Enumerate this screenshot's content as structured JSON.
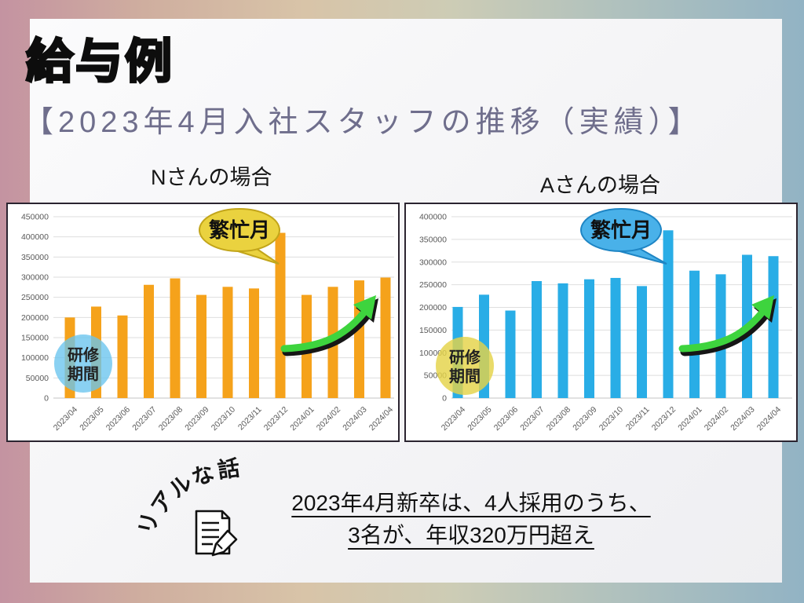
{
  "slide": {
    "title": "給与例",
    "subtitle": "【2023年4月入社スタッフの推移（実績）】"
  },
  "chart_data": [
    {
      "type": "bar",
      "title": "Nさんの場合",
      "categories": [
        "2023/04",
        "2023/05",
        "2023/06",
        "2023/07",
        "2023/08",
        "2023/09",
        "2023/10",
        "2023/11",
        "2023/12",
        "2024/01",
        "2024/02",
        "2024/03",
        "2024/04"
      ],
      "values": [
        200000,
        227000,
        205000,
        281000,
        297000,
        256000,
        276000,
        272000,
        410000,
        256000,
        276000,
        292000,
        299000
      ],
      "ylim": [
        0,
        450000
      ],
      "ytick_step": 50000,
      "grid": true,
      "legend": "none",
      "bar_color": "#F5A21B",
      "axis_text_color": "#595959",
      "annotations": {
        "busy_label": "繁忙月",
        "busy_bubble_fill": "#EAD23F",
        "busy_bubble_stroke": "#C2A51A",
        "training_label": "研修期間",
        "training_line1": "研修",
        "training_line2": "期間",
        "training_fill": "rgba(105,196,238,0.78)",
        "arrow_color": "#3ED43E"
      }
    },
    {
      "type": "bar",
      "title": "Aさんの場合",
      "categories": [
        "2023/04",
        "2023/05",
        "2023/06",
        "2023/07",
        "2023/08",
        "2023/09",
        "2023/10",
        "2023/11",
        "2023/12",
        "2024/01",
        "2024/02",
        "2024/03",
        "2024/04"
      ],
      "values": [
        201000,
        228000,
        193000,
        258000,
        253000,
        262000,
        265000,
        247000,
        370000,
        281000,
        273000,
        316000,
        313000
      ],
      "ylim": [
        0,
        400000
      ],
      "ytick_step": 50000,
      "grid": true,
      "legend": "none",
      "bar_color": "#29ADE6",
      "axis_text_color": "#595959",
      "annotations": {
        "busy_label": "繁忙月",
        "busy_bubble_fill": "#49B1E9",
        "busy_bubble_stroke": "#1E85C4",
        "training_label": "研修期間",
        "training_line1": "研修",
        "training_line2": "期間",
        "training_fill": "rgba(228,211,72,0.82)",
        "arrow_color": "#3ED43E"
      }
    }
  ],
  "note": {
    "arc_label": "リアルな話",
    "line1": "2023年4月新卒は、4人採用のうち、",
    "line2": "3名が、年収320万円超え"
  },
  "colors": {
    "background_left": "#C493A1",
    "background_middle": "#D7C3A8",
    "background_right": "#92B3C4",
    "panel": "#F6F6F8",
    "subtitle_text": "#6F6E8C",
    "gridline": "#DEDEDE"
  }
}
